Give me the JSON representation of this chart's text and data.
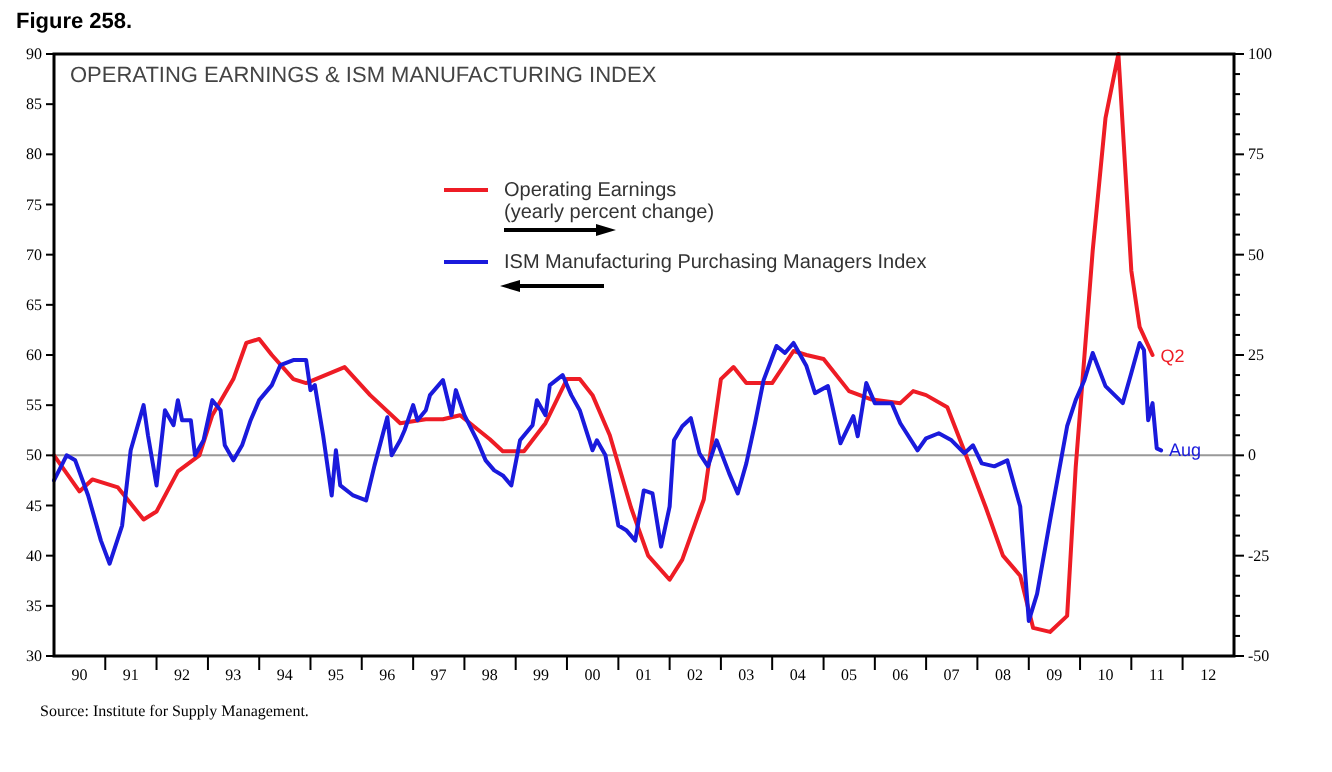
{
  "chart_data": {
    "type": "line",
    "title": "OPERATING EARNINGS & ISM MANUFACTURING INDEX",
    "subtitle": "Figure 258.",
    "xlim": [
      "1990-01",
      "2013-01"
    ],
    "xticks": [
      {
        "value": "1990-07",
        "label": "90"
      },
      {
        "value": "1991-07",
        "label": "91"
      },
      {
        "value": "1992-07",
        "label": "92"
      },
      {
        "value": "1993-07",
        "label": "93"
      },
      {
        "value": "1994-07",
        "label": "94"
      },
      {
        "value": "1995-07",
        "label": "95"
      },
      {
        "value": "1996-07",
        "label": "96"
      },
      {
        "value": "1997-07",
        "label": "97"
      },
      {
        "value": "1998-07",
        "label": "98"
      },
      {
        "value": "1999-07",
        "label": "99"
      },
      {
        "value": "2000-07",
        "label": "00"
      },
      {
        "value": "2001-07",
        "label": "01"
      },
      {
        "value": "2002-07",
        "label": "02"
      },
      {
        "value": "2003-07",
        "label": "03"
      },
      {
        "value": "2004-07",
        "label": "04"
      },
      {
        "value": "2005-07",
        "label": "05"
      },
      {
        "value": "2006-07",
        "label": "06"
      },
      {
        "value": "2007-07",
        "label": "07"
      },
      {
        "value": "2008-07",
        "label": "08"
      },
      {
        "value": "2009-07",
        "label": "09"
      },
      {
        "value": "2010-07",
        "label": "10"
      },
      {
        "value": "2011-07",
        "label": "11"
      },
      {
        "value": "2012-07",
        "label": "12"
      },
      {
        "value": "1991",
        "label": null
      },
      {
        "value": "1992",
        "label": null
      },
      {
        "value": "1993",
        "label": null
      },
      {
        "value": "1994",
        "label": null
      },
      {
        "value": "1995",
        "label": null
      },
      {
        "value": "1996",
        "label": null
      },
      {
        "value": "1997",
        "label": null
      },
      {
        "value": "1998",
        "label": null
      },
      {
        "value": "1999",
        "label": null
      },
      {
        "value": "2000",
        "label": null
      },
      {
        "value": "2001",
        "label": null
      },
      {
        "value": "2002",
        "label": null
      },
      {
        "value": "2003",
        "label": null
      },
      {
        "value": "2004",
        "label": null
      },
      {
        "value": "2005",
        "label": null
      },
      {
        "value": "2006",
        "label": null
      },
      {
        "value": "2007",
        "label": null
      },
      {
        "value": "2008",
        "label": null
      },
      {
        "value": "2009",
        "label": null
      },
      {
        "value": "2010",
        "label": null
      },
      {
        "value": "2011",
        "label": null
      },
      {
        "value": "2012",
        "label": null
      }
    ],
    "ylim": [
      30,
      90
    ],
    "yticks": [
      30,
      35,
      40,
      45,
      50,
      55,
      60,
      65,
      70,
      75,
      80,
      85,
      90
    ],
    "y2lim": [
      -50,
      100
    ],
    "y2ticks": [
      -50,
      {
        "value": -45,
        "label": null
      },
      {
        "value": -40,
        "label": null
      },
      {
        "value": -35,
        "label": null
      },
      {
        "value": -30,
        "label": null
      },
      -25,
      {
        "value": -20,
        "label": null
      },
      {
        "value": -15,
        "label": null
      },
      {
        "value": -10,
        "label": null
      },
      {
        "value": -5,
        "label": null
      },
      0,
      {
        "value": 5,
        "label": null
      },
      {
        "value": 10,
        "label": null
      },
      {
        "value": 15,
        "label": null
      },
      {
        "value": 20,
        "label": null
      },
      25,
      {
        "value": 30,
        "label": null
      },
      {
        "value": 35,
        "label": null
      },
      {
        "value": 40,
        "label": null
      },
      {
        "value": 45,
        "label": null
      },
      50,
      {
        "value": 55,
        "label": null
      },
      {
        "value": 60,
        "label": null
      },
      {
        "value": 65,
        "label": null
      },
      {
        "value": 70,
        "label": null
      },
      75,
      {
        "value": 80,
        "label": null
      },
      {
        "value": 85,
        "label": null
      },
      {
        "value": 90,
        "label": null
      },
      {
        "value": 95,
        "label": null
      },
      100
    ],
    "legend": "top",
    "grid": false,
    "ref_lines": [
      {
        "axis": "y",
        "value": 50,
        "color": "#999999"
      }
    ],
    "series": [
      {
        "name": "Operating Earnings\n(yearly percent change)",
        "color": "#ee1c25",
        "axis": "y2",
        "x": [
          "1990-01",
          "1990-07",
          "1990-10",
          "1991-04",
          "1991-10",
          "1992-01",
          "1992-06",
          "1992-11",
          "1993-02",
          "1993-07",
          "1993-10",
          "1994-01",
          "1994-04",
          "1994-09",
          "1994-12",
          "1995-09",
          "1996-03",
          "1996-10",
          "1997-04",
          "1997-08",
          "1997-12",
          "1998-07",
          "1998-10",
          "1999-03",
          "1999-08",
          "2000-01",
          "2000-04",
          "2000-07",
          "2000-11",
          "2001-04",
          "2001-08",
          "2002-01",
          "2002-04",
          "2002-09",
          "2003-01",
          "2003-04",
          "2003-07",
          "2004-01",
          "2004-06",
          "2004-09",
          "2005-01",
          "2005-07",
          "2005-12",
          "2006-07",
          "2006-10",
          "2007-01",
          "2007-06",
          "2007-10",
          "2008-03",
          "2008-07",
          "2008-11",
          "2009-02",
          "2009-06",
          "2009-10",
          "2009-12",
          "2010-04",
          "2010-07",
          "2010-10",
          "2011-01",
          "2011-03",
          "2011-06"
        ],
        "values": [
          0,
          -9,
          -6,
          -8,
          -16,
          -14,
          -4,
          0,
          10,
          19,
          28,
          29,
          25,
          19,
          18,
          22,
          15,
          8,
          9,
          9,
          10,
          4,
          1,
          1,
          8,
          19,
          19,
          15,
          5,
          -13,
          -25,
          -31,
          -26,
          -11,
          19,
          22,
          18,
          18,
          26,
          25,
          24,
          16,
          14,
          13,
          16,
          15,
          12,
          1,
          -13,
          -25,
          -30,
          -43,
          -44,
          -40,
          -3,
          51,
          84,
          100,
          46,
          32,
          25
        ]
      },
      {
        "name": "ISM Manufacturing Purchasing Managers Index",
        "color": "#1a1adc",
        "x": [
          "1990-01",
          "1990-04",
          "1990-06",
          "1990-09",
          "1990-12",
          "1991-02",
          "1991-05",
          "1991-07",
          "1991-10",
          "1991-11",
          "1992-01",
          "1992-03",
          "1992-05",
          "1992-06",
          "1992-07",
          "1992-09",
          "1992-10",
          "1992-12",
          "1993-02",
          "1993-04",
          "1993-05",
          "1993-07",
          "1993-09",
          "1993-11",
          "1994-01",
          "1994-04",
          "1994-06",
          "1994-09",
          "1994-12",
          "1995-01",
          "1995-02",
          "1995-04",
          "1995-06",
          "1995-07",
          "1995-08",
          "1995-11",
          "1996-02",
          "1996-04",
          "1996-07",
          "1996-08",
          "1996-10",
          "1996-11",
          "1997-01",
          "1997-02",
          "1997-04",
          "1997-05",
          "1997-08",
          "1997-10",
          "1997-11",
          "1998-01",
          "1998-04",
          "1998-06",
          "1998-08",
          "1998-10",
          "1998-12",
          "1999-02",
          "1999-05",
          "1999-06",
          "1999-08",
          "1999-09",
          "1999-12",
          "2000-02",
          "2000-04",
          "2000-07",
          "2000-08",
          "2000-10",
          "2001-01",
          "2001-03",
          "2001-05",
          "2001-07",
          "2001-09",
          "2001-11",
          "2002-01",
          "2002-02",
          "2002-04",
          "2002-06",
          "2002-08",
          "2002-10",
          "2002-12",
          "2003-03",
          "2003-05",
          "2003-07",
          "2003-09",
          "2003-11",
          "2004-02",
          "2004-04",
          "2004-06",
          "2004-09",
          "2004-11",
          "2005-02",
          "2005-05",
          "2005-08",
          "2005-09",
          "2005-11",
          "2006-01",
          "2006-05",
          "2006-07",
          "2006-11",
          "2007-01",
          "2007-04",
          "2007-07",
          "2007-10",
          "2007-12",
          "2008-02",
          "2008-05",
          "2008-08",
          "2008-11",
          "2009-01",
          "2009-03",
          "2009-06",
          "2009-10",
          "2009-12",
          "2010-02",
          "2010-04",
          "2010-07",
          "2010-11",
          "2011-01",
          "2011-03",
          "2011-04",
          "2011-05",
          "2011-06",
          "2011-07",
          "2011-08"
        ],
        "values": [
          47.5,
          50,
          49.5,
          46,
          41.5,
          39.2,
          43,
          50.5,
          55,
          52,
          47,
          54.5,
          53,
          55.5,
          53.5,
          53.5,
          50,
          51.5,
          55.5,
          54.5,
          51,
          49.5,
          51,
          53.5,
          55.5,
          57,
          59,
          59.5,
          59.5,
          56.5,
          57,
          52,
          46,
          50.5,
          47,
          46,
          45.5,
          49,
          53.8,
          50,
          51.5,
          52.5,
          55,
          53.5,
          54.5,
          56,
          57.5,
          54,
          56.5,
          54,
          51.5,
          49.5,
          48.5,
          48,
          47,
          51.5,
          53,
          55.5,
          54,
          57,
          58,
          56,
          54.5,
          50.5,
          51.5,
          50,
          43,
          42.5,
          41.5,
          46.5,
          46.2,
          40.9,
          44.9,
          51.5,
          52.9,
          53.7,
          50.2,
          48.9,
          51.5,
          48.2,
          46.2,
          49.2,
          53.2,
          57.5,
          60.9,
          60.2,
          61.2,
          58.9,
          56.2,
          56.9,
          51.2,
          53.9,
          51.9,
          57.2,
          55.2,
          55.2,
          53.2,
          50.5,
          51.7,
          52.2,
          51.5,
          50.2,
          51,
          49.2,
          48.9,
          49.5,
          44.9,
          33.5,
          36.2,
          43.5,
          52.9,
          55.5,
          57.5,
          60.2,
          56.9,
          55.2,
          58.2,
          61.2,
          60.5,
          53.5,
          55.2,
          50.7,
          50.5
        ]
      }
    ],
    "annotations": [
      {
        "text": "Q2",
        "x": "2011-06",
        "y": 59.9
      },
      {
        "text": "Aug",
        "x": "2011-08",
        "y": 50.5
      },
      "Source: Institute for Supply Management."
    ]
  }
}
